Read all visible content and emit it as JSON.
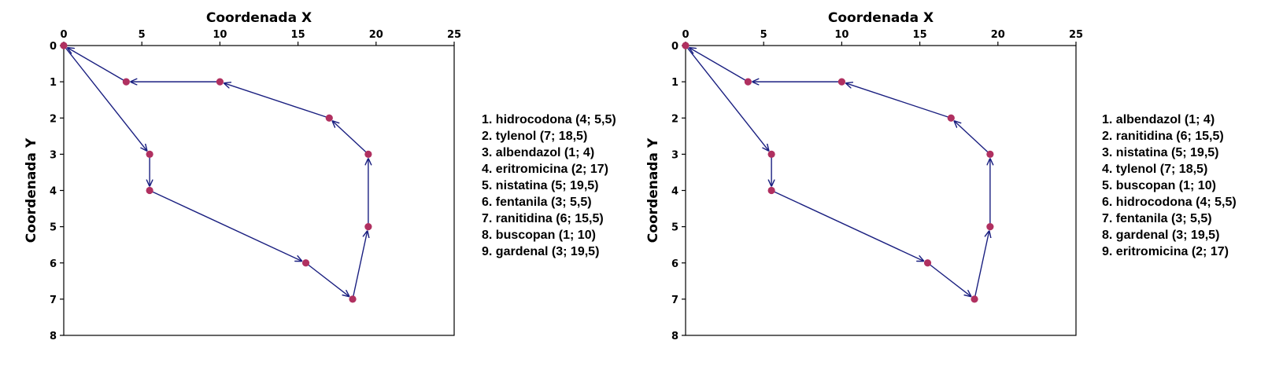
{
  "chart_data": [
    {
      "type": "scatter",
      "xlabel": "Coordenada X",
      "ylabel": "Coordenada Y",
      "xlim": [
        0,
        25
      ],
      "ylim": [
        8,
        0
      ],
      "x_axis_position": "top",
      "y_axis_inverted": true,
      "xticks": [
        0,
        5,
        10,
        15,
        20,
        25
      ],
      "yticks": [
        0,
        1,
        2,
        3,
        4,
        5,
        6,
        7,
        8
      ],
      "grid": false,
      "point_color": "#b03060",
      "arrow_color": "#1a1f80",
      "points": [
        {
          "x": 0,
          "y": 0
        },
        {
          "x": 5.5,
          "y": 3
        },
        {
          "x": 5.5,
          "y": 4
        },
        {
          "x": 15.5,
          "y": 6
        },
        {
          "x": 18.5,
          "y": 7
        },
        {
          "x": 19.5,
          "y": 5
        },
        {
          "x": 19.5,
          "y": 3
        },
        {
          "x": 17,
          "y": 2
        },
        {
          "x": 10,
          "y": 1
        },
        {
          "x": 4,
          "y": 1
        },
        {
          "x": 0,
          "y": 0
        }
      ],
      "legend_placement": "right",
      "legend": [
        "1. hidrocodona (4; 5,5)",
        "2. tylenol (7; 18,5)",
        "3. albendazol (1; 4)",
        "4. eritromicina (2; 17)",
        "5. nistatina (5; 19,5)",
        "6. fentanila (3; 5,5)",
        "7. ranitidina (6; 15,5)",
        "8. buscopan (1; 10)",
        "9. gardenal (3; 19,5)"
      ]
    },
    {
      "type": "scatter",
      "xlabel": "Coordenada X",
      "ylabel": "Coordenada Y",
      "xlim": [
        0,
        25
      ],
      "ylim": [
        8,
        0
      ],
      "x_axis_position": "top",
      "y_axis_inverted": true,
      "xticks": [
        0,
        5,
        10,
        15,
        20,
        25
      ],
      "yticks": [
        0,
        1,
        2,
        3,
        4,
        5,
        6,
        7,
        8
      ],
      "grid": false,
      "point_color": "#b03060",
      "arrow_color": "#1a1f80",
      "points": [
        {
          "x": 0,
          "y": 0
        },
        {
          "x": 5.5,
          "y": 3
        },
        {
          "x": 5.5,
          "y": 4
        },
        {
          "x": 15.5,
          "y": 6
        },
        {
          "x": 18.5,
          "y": 7
        },
        {
          "x": 19.5,
          "y": 5
        },
        {
          "x": 19.5,
          "y": 3
        },
        {
          "x": 17,
          "y": 2
        },
        {
          "x": 10,
          "y": 1
        },
        {
          "x": 4,
          "y": 1
        },
        {
          "x": 0,
          "y": 0
        }
      ],
      "legend_placement": "right",
      "legend": [
        "1. albendazol (1; 4)",
        "2. ranitidina (6; 15,5)",
        "3. nistatina (5; 19,5)",
        "4. tylenol (7; 18,5)",
        "5. buscopan (1; 10)",
        "6. hidrocodona (4; 5,5)",
        "7. fentanila (3; 5,5)",
        "8. gardenal (3; 19,5)",
        "9. eritromicina (2; 17)"
      ]
    }
  ]
}
